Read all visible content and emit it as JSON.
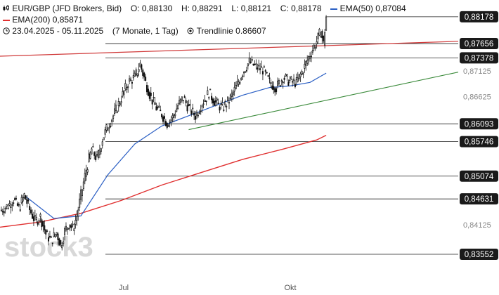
{
  "legend": {
    "symbol": "EUR/GBP (JFD Brokers, Bid)",
    "open_label": "O:",
    "open": "0,88130",
    "high_label": "H:",
    "high": "0,88291",
    "low_label": "L:",
    "low": "0,88121",
    "close_label": "C:",
    "close": "0,88178",
    "ema50_label": "EMA(50)",
    "ema50_value": "0,87084",
    "ema200_label": "EMA(200)",
    "ema200_value": "0,85871",
    "date_range": "23.04.2025 - 05.11.2025",
    "duration": "(7 Monate, 1 Tag)",
    "trendline_label": "Trendlinie",
    "trendline_value": "0.86607"
  },
  "watermark": "stock3",
  "colors": {
    "ema50": "#2b5fc4",
    "ema200": "#e03030",
    "trendline": "#3a8a3a",
    "level_line": "#222222",
    "candle": "#111111",
    "label_bg": "#1a1a1a",
    "label_fg": "#ffffff",
    "tick_fg": "#888888"
  },
  "chart_data": {
    "type": "candlestick",
    "x_labels": [
      "Jul",
      "Okt"
    ],
    "y_range": [
      0.8306,
      0.8845
    ],
    "y_ticks": [
      "0,87125",
      "0,86625",
      "0,84125"
    ],
    "current_price": "0,88178",
    "horizontal_levels": [
      "0,87656",
      "0,87378",
      "0,86093",
      "0,85746",
      "0,85074",
      "0,84631",
      "0,83552"
    ],
    "close_path": [
      [
        0,
        0.844
      ],
      [
        6,
        0.845
      ],
      [
        10,
        0.8462
      ],
      [
        14,
        0.8445
      ],
      [
        18,
        0.847
      ],
      [
        22,
        0.8442
      ],
      [
        26,
        0.842
      ],
      [
        30,
        0.8428
      ],
      [
        34,
        0.8395
      ],
      [
        38,
        0.8382
      ],
      [
        42,
        0.8398
      ],
      [
        45,
        0.8372
      ],
      [
        48,
        0.84
      ],
      [
        51,
        0.8415
      ],
      [
        54,
        0.8405
      ],
      [
        57,
        0.843
      ],
      [
        60,
        0.847
      ],
      [
        64,
        0.852
      ],
      [
        68,
        0.856
      ],
      [
        72,
        0.854
      ],
      [
        76,
        0.858
      ],
      [
        80,
        0.8605
      ],
      [
        85,
        0.863
      ],
      [
        90,
        0.866
      ],
      [
        95,
        0.869
      ],
      [
        100,
        0.87
      ],
      [
        104,
        0.8725
      ],
      [
        108,
        0.869
      ],
      [
        112,
        0.866
      ],
      [
        116,
        0.864
      ],
      [
        120,
        0.8628
      ],
      [
        124,
        0.861
      ],
      [
        128,
        0.8622
      ],
      [
        132,
        0.8645
      ],
      [
        136,
        0.866
      ],
      [
        140,
        0.864
      ],
      [
        145,
        0.8625
      ],
      [
        150,
        0.865
      ],
      [
        155,
        0.867
      ],
      [
        160,
        0.865
      ],
      [
        165,
        0.864
      ],
      [
        170,
        0.8655
      ],
      [
        175,
        0.868
      ],
      [
        180,
        0.871
      ],
      [
        185,
        0.873
      ],
      [
        190,
        0.872
      ],
      [
        195,
        0.8715
      ],
      [
        200,
        0.869
      ],
      [
        205,
        0.868
      ],
      [
        210,
        0.87
      ],
      [
        215,
        0.8692
      ],
      [
        220,
        0.869
      ],
      [
        225,
        0.8715
      ],
      [
        230,
        0.8745
      ],
      [
        235,
        0.877
      ],
      [
        238,
        0.879
      ],
      [
        240,
        0.8765
      ],
      [
        242,
        0.8818
      ]
    ],
    "ema50_path": [
      [
        18,
        0.847
      ],
      [
        40,
        0.8425
      ],
      [
        60,
        0.843
      ],
      [
        80,
        0.851
      ],
      [
        100,
        0.857
      ],
      [
        120,
        0.8605
      ],
      [
        140,
        0.8625
      ],
      [
        160,
        0.8645
      ],
      [
        180,
        0.8665
      ],
      [
        200,
        0.868
      ],
      [
        215,
        0.8683
      ],
      [
        230,
        0.869
      ],
      [
        242,
        0.8708
      ]
    ],
    "ema200_path": [
      [
        0,
        0.8408
      ],
      [
        30,
        0.8418
      ],
      [
        60,
        0.8435
      ],
      [
        90,
        0.846
      ],
      [
        120,
        0.849
      ],
      [
        150,
        0.8515
      ],
      [
        180,
        0.854
      ],
      [
        210,
        0.856
      ],
      [
        235,
        0.8578
      ],
      [
        242,
        0.8587
      ]
    ],
    "trendline": {
      "from": [
        140,
        0.8598
      ],
      "to": [
        340,
        0.871
      ]
    },
    "resistance_line": {
      "from": [
        0,
        0.8741
      ],
      "to": [
        340,
        0.877
      ]
    }
  }
}
